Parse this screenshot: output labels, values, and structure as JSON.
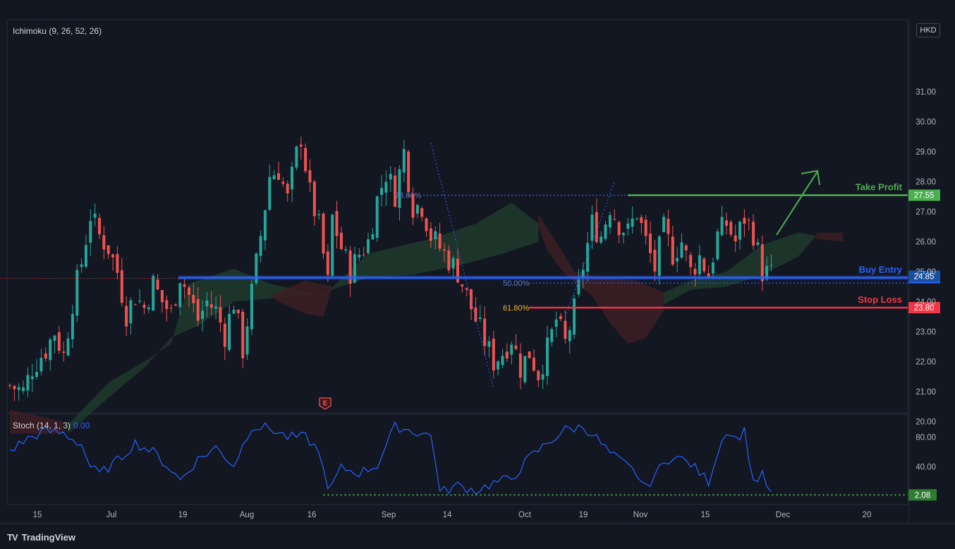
{
  "indicators": {
    "ichimoku_label": "Ichimoku (9, 26, 52, 26)",
    "stoch_label": "Stoch (14, 1, 3)",
    "stoch_value": "0.00"
  },
  "currency": "HKD",
  "branding": {
    "logo_text": "TradingView",
    "logo_mark": "TV"
  },
  "earnings_marker": "E",
  "colors": {
    "background": "#131722",
    "up": "#26a69a",
    "down": "#ef5350",
    "take_profit": "#4caf50",
    "buy_entry": "#2962ff",
    "stop_loss": "#f23645",
    "stoch_line": "#2962ff",
    "cloud_bull": "#1e3a2b",
    "cloud_bear": "#3d1f24"
  },
  "chart_data": {
    "type": "candlestick",
    "x_tick_labels": [
      "15",
      "Jul",
      "19",
      "Aug",
      "16",
      "Sep",
      "14",
      "Oct",
      "19",
      "Nov",
      "15",
      "Dec",
      "20"
    ],
    "y_axis": {
      "ticks": [
        "20.00",
        "21.00",
        "22.00",
        "23.00",
        "24.00",
        "25.00",
        "26.00",
        "27.00",
        "28.00",
        "29.00",
        "30.00",
        "31.00"
      ],
      "ylim": [
        19.0,
        32.2
      ]
    },
    "stoch_axis": {
      "ticks": [
        "40.00",
        "80.00"
      ],
      "ylim": [
        0,
        100
      ]
    },
    "levels": [
      {
        "name": "take-profit",
        "label": "Take Profit",
        "price": 27.55,
        "price_label": "27.55"
      },
      {
        "name": "buy-entry",
        "label": "Buy Entry",
        "price": 24.8,
        "price_label": "24.80"
      },
      {
        "name": "stop-loss",
        "label": "Stop Loss",
        "price": 23.8,
        "price_label": "23.80"
      }
    ],
    "last_price": {
      "price": 24.85,
      "label": "24.85"
    },
    "fibonacci": [
      {
        "label": "78.60%",
        "price": 27.55
      },
      {
        "label": "50.00%",
        "price": 24.62
      },
      {
        "label": "61.80%",
        "price": 23.8
      }
    ],
    "stoch_level": {
      "value": 2.08,
      "label": "2.08"
    },
    "close_path": [
      [
        0,
        21.2
      ],
      [
        3,
        21.0
      ],
      [
        5,
        21.8
      ],
      [
        8,
        22.4
      ],
      [
        10,
        23.0
      ],
      [
        12,
        22.2
      ],
      [
        14,
        24.0
      ],
      [
        16,
        25.3
      ],
      [
        18,
        26.9
      ],
      [
        20,
        26.2
      ],
      [
        22,
        25.8
      ],
      [
        24,
        25.0
      ],
      [
        26,
        23.6
      ],
      [
        28,
        24.2
      ],
      [
        30,
        23.8
      ],
      [
        32,
        24.6
      ],
      [
        34,
        24.0
      ],
      [
        36,
        23.6
      ],
      [
        38,
        24.9
      ],
      [
        40,
        24.2
      ],
      [
        42,
        23.4
      ],
      [
        44,
        24.0
      ],
      [
        46,
        23.7
      ],
      [
        48,
        22.9
      ],
      [
        50,
        24.0
      ],
      [
        52,
        22.4
      ],
      [
        54,
        24.3
      ],
      [
        56,
        26.2
      ],
      [
        58,
        28.2
      ],
      [
        60,
        28.4
      ],
      [
        62,
        27.4
      ],
      [
        64,
        28.9
      ],
      [
        65,
        29.5
      ],
      [
        67,
        27.6
      ],
      [
        69,
        26.5
      ],
      [
        71,
        24.6
      ],
      [
        72,
        26.8
      ],
      [
        74,
        25.8
      ],
      [
        76,
        25.0
      ],
      [
        78,
        25.6
      ],
      [
        80,
        26.0
      ],
      [
        82,
        27.4
      ],
      [
        84,
        28.3
      ],
      [
        86,
        27.6
      ],
      [
        88,
        29.0
      ],
      [
        90,
        27.2
      ],
      [
        92,
        27.2
      ],
      [
        94,
        26.2
      ],
      [
        96,
        25.8
      ],
      [
        98,
        25.4
      ],
      [
        100,
        25.0
      ],
      [
        102,
        24.2
      ],
      [
        104,
        23.4
      ],
      [
        106,
        22.7
      ],
      [
        108,
        22.0
      ],
      [
        110,
        22.3
      ],
      [
        112,
        22.8
      ],
      [
        114,
        21.8
      ],
      [
        116,
        22.3
      ],
      [
        118,
        21.6
      ],
      [
        120,
        22.4
      ],
      [
        122,
        23.4
      ],
      [
        124,
        22.6
      ],
      [
        126,
        23.7
      ],
      [
        128,
        25.2
      ],
      [
        130,
        26.6
      ],
      [
        132,
        26.2
      ],
      [
        134,
        27.2
      ],
      [
        136,
        26.6
      ],
      [
        138,
        26.3
      ],
      [
        140,
        27.0
      ],
      [
        142,
        26.0
      ],
      [
        144,
        25.1
      ],
      [
        146,
        26.4
      ],
      [
        148,
        25.6
      ],
      [
        150,
        26.0
      ],
      [
        152,
        25.0
      ],
      [
        154,
        25.5
      ],
      [
        156,
        24.9
      ],
      [
        158,
        26.2
      ],
      [
        160,
        26.6
      ],
      [
        162,
        26.0
      ],
      [
        164,
        26.8
      ],
      [
        166,
        26.3
      ],
      [
        168,
        25.0
      ],
      [
        170,
        24.9
      ]
    ],
    "stoch_path": [
      [
        0,
        62
      ],
      [
        4,
        78
      ],
      [
        8,
        88
      ],
      [
        12,
        85
      ],
      [
        16,
        70
      ],
      [
        18,
        40
      ],
      [
        20,
        30
      ],
      [
        24,
        48
      ],
      [
        28,
        72
      ],
      [
        32,
        60
      ],
      [
        36,
        36
      ],
      [
        38,
        22
      ],
      [
        42,
        50
      ],
      [
        46,
        66
      ],
      [
        50,
        42
      ],
      [
        54,
        95
      ],
      [
        58,
        92
      ],
      [
        62,
        80
      ],
      [
        66,
        80
      ],
      [
        68,
        68
      ],
      [
        70,
        44
      ],
      [
        71,
        5
      ],
      [
        74,
        38
      ],
      [
        78,
        32
      ],
      [
        82,
        42
      ],
      [
        86,
        95
      ],
      [
        90,
        88
      ],
      [
        94,
        82
      ],
      [
        95,
        50
      ],
      [
        96,
        5
      ],
      [
        100,
        15
      ],
      [
        104,
        8
      ],
      [
        108,
        18
      ],
      [
        112,
        24
      ],
      [
        116,
        52
      ],
      [
        120,
        72
      ],
      [
        124,
        90
      ],
      [
        128,
        94
      ],
      [
        130,
        85
      ],
      [
        134,
        58
      ],
      [
        138,
        40
      ],
      [
        140,
        30
      ],
      [
        142,
        10
      ],
      [
        144,
        30
      ],
      [
        148,
        56
      ],
      [
        152,
        44
      ],
      [
        156,
        20
      ],
      [
        158,
        60
      ],
      [
        160,
        90
      ],
      [
        162,
        78
      ],
      [
        164,
        88
      ],
      [
        166,
        20
      ],
      [
        168,
        28
      ],
      [
        170,
        3
      ]
    ]
  }
}
